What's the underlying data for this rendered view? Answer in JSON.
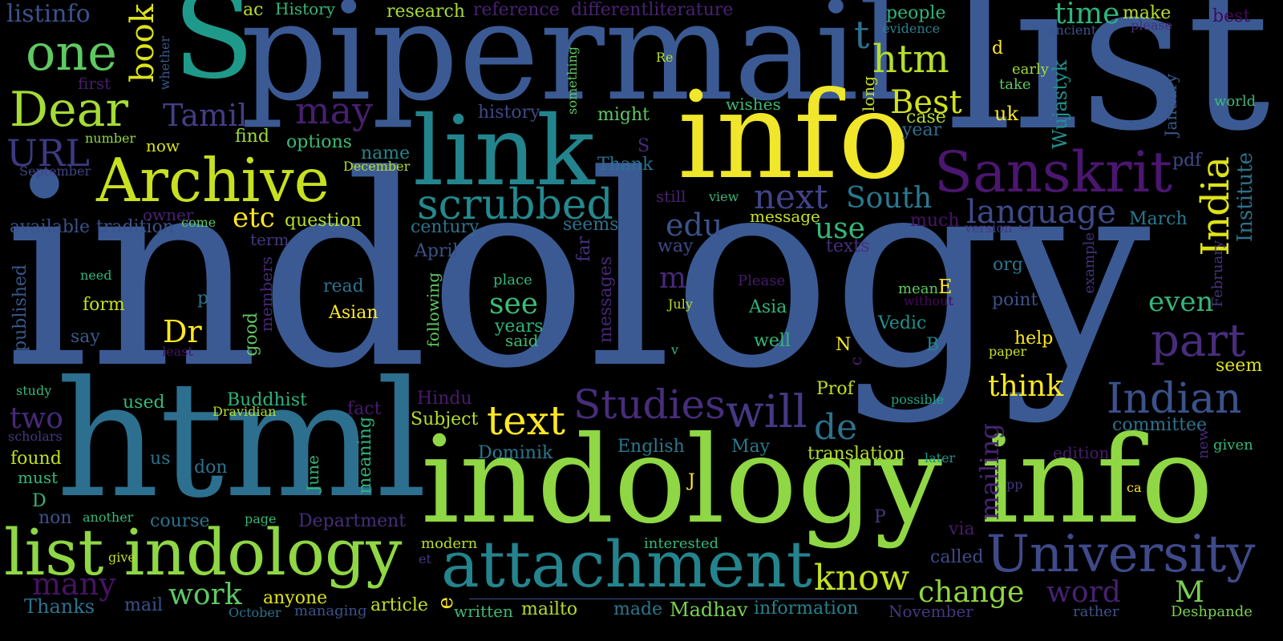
{
  "words": [
    {
      "text": "indology",
      "color": "#3b5a94"
    },
    {
      "text": "list",
      "color": "#3b5a94"
    },
    {
      "text": "pipermail",
      "color": "#3b5a94"
    },
    {
      "text": "info",
      "color": "#f0e62a"
    },
    {
      "text": "indology info",
      "color": "#8fd744"
    },
    {
      "text": "html",
      "color": "#2d6f8e"
    },
    {
      "text": "link",
      "color": "#23848d"
    },
    {
      "text": "S",
      "color": "#1f9a8a"
    },
    {
      "text": "attachment",
      "color": "#23848d"
    },
    {
      "text": "list indology",
      "color": "#8fd744"
    },
    {
      "text": "Archive",
      "color": "#c8e020"
    },
    {
      "text": "Sanskrit",
      "color": "#4b1670"
    },
    {
      "text": "University",
      "color": "#3e4a89"
    },
    {
      "text": "Dear",
      "color": "#a5db36"
    },
    {
      "text": "one",
      "color": "#5ec962"
    },
    {
      "text": "India",
      "color": "#dde318"
    },
    {
      "text": "scrubbed",
      "color": "#23898e"
    },
    {
      "text": "Indian",
      "color": "#3b528b"
    },
    {
      "text": "Studies",
      "color": "#472d7b"
    },
    {
      "text": "text",
      "color": "#fde725"
    },
    {
      "text": "will",
      "color": "#443983"
    },
    {
      "text": "part",
      "color": "#472d7b"
    },
    {
      "text": "htm",
      "color": "#b5de2b"
    },
    {
      "text": "Best",
      "color": "#d2e21b"
    },
    {
      "text": "book",
      "color": "#dde318"
    },
    {
      "text": "may",
      "color": "#481f70"
    },
    {
      "text": "next",
      "color": "#414487"
    },
    {
      "text": "Tamil",
      "color": "#433e85"
    },
    {
      "text": "language",
      "color": "#3e4a89"
    },
    {
      "text": "South",
      "color": "#2a788e"
    },
    {
      "text": "URL",
      "color": "#3b3a81"
    },
    {
      "text": "edu",
      "color": "#3b528b"
    },
    {
      "text": "use",
      "color": "#35b779"
    },
    {
      "text": "time",
      "color": "#2fb47c"
    },
    {
      "text": "listinfo",
      "color": "#3b528b"
    },
    {
      "text": "know",
      "color": "#c5e021"
    },
    {
      "text": "change",
      "color": "#90d743"
    },
    {
      "text": "de",
      "color": "#2c728e"
    },
    {
      "text": "work",
      "color": "#5ec962"
    },
    {
      "text": "two",
      "color": "#472a7a"
    },
    {
      "text": "Dr",
      "color": "#fde725"
    },
    {
      "text": "think",
      "color": "#fde725"
    },
    {
      "text": "see",
      "color": "#3dbc74"
    },
    {
      "text": "many",
      "color": "#471365"
    },
    {
      "text": "word",
      "color": "#482173"
    },
    {
      "text": "mailing",
      "color": "#482475"
    },
    {
      "text": "etc",
      "color": "#fde725"
    },
    {
      "text": "even",
      "color": "#35b779"
    },
    {
      "text": "t",
      "color": "#2c728e"
    },
    {
      "text": "m",
      "color": "#482878"
    },
    {
      "text": "M",
      "color": "#7ad151"
    },
    {
      "text": "Thanks",
      "color": "#2c728e"
    },
    {
      "text": "research",
      "color": "#a5db36"
    },
    {
      "text": "reference",
      "color": "#482173"
    },
    {
      "text": "differentliterature",
      "color": "#482173"
    },
    {
      "text": "History",
      "color": "#35b779"
    },
    {
      "text": "ac",
      "color": "#b8de29"
    },
    {
      "text": "people",
      "color": "#2fb47c"
    },
    {
      "text": "make",
      "color": "#b5de2b"
    },
    {
      "text": "best",
      "color": "#46075a"
    },
    {
      "text": "evidence",
      "color": "#26828e"
    },
    {
      "text": "ancient",
      "color": "#3b528b"
    },
    {
      "text": "please",
      "color": "#472d7b"
    },
    {
      "text": "Re",
      "color": "#b8de29"
    },
    {
      "text": "d",
      "color": "#fde725"
    },
    {
      "text": "early",
      "color": "#a0da39"
    },
    {
      "text": "take",
      "color": "#5ec962"
    },
    {
      "text": "Wujastyk",
      "color": "#21908d"
    },
    {
      "text": "world",
      "color": "#3dbc74"
    },
    {
      "text": "uk",
      "color": "#fde725"
    },
    {
      "text": "long",
      "color": "#c2df23"
    },
    {
      "text": "case",
      "color": "#b5de2b"
    },
    {
      "text": "year",
      "color": "#2e6e8e"
    },
    {
      "text": "January",
      "color": "#38598c"
    },
    {
      "text": "pdf",
      "color": "#3e4a89"
    },
    {
      "text": "Institute",
      "color": "#2c728e"
    },
    {
      "text": "first",
      "color": "#481c6e"
    },
    {
      "text": "whether",
      "color": "#38588c"
    },
    {
      "text": "wishes",
      "color": "#3dbc74"
    },
    {
      "text": "history",
      "color": "#3e4989"
    },
    {
      "text": "something",
      "color": "#5ec962"
    },
    {
      "text": "might",
      "color": "#5ec962"
    },
    {
      "text": "find",
      "color": "#a0da39"
    },
    {
      "text": "options",
      "color": "#3dbc74"
    },
    {
      "text": "number",
      "color": "#8fd744"
    },
    {
      "text": "now",
      "color": "#dde318"
    },
    {
      "text": "September",
      "color": "#414487"
    },
    {
      "text": "name",
      "color": "#25858e"
    },
    {
      "text": "December",
      "color": "#b5de2b"
    },
    {
      "text": "Thank",
      "color": "#2d708e"
    },
    {
      "text": "still",
      "color": "#482071"
    },
    {
      "text": "view",
      "color": "#35b779"
    },
    {
      "text": "message",
      "color": "#c8e020"
    },
    {
      "text": "much",
      "color": "#481467"
    },
    {
      "text": "version",
      "color": "#453781"
    },
    {
      "text": "March",
      "color": "#2a788e"
    },
    {
      "text": "February",
      "color": "#46337f"
    },
    {
      "text": "example",
      "color": "#46327e"
    },
    {
      "text": "org",
      "color": "#2c728e"
    },
    {
      "text": "question",
      "color": "#b5de2b"
    },
    {
      "text": "owner",
      "color": "#482173"
    },
    {
      "text": "come",
      "color": "#5ec962"
    },
    {
      "text": "tradition",
      "color": "#3b528b"
    },
    {
      "text": "available",
      "color": "#3b528b"
    },
    {
      "text": "term",
      "color": "#453781"
    },
    {
      "text": "century",
      "color": "#2c728e"
    },
    {
      "text": "seems",
      "color": "#2c728e"
    },
    {
      "text": "far",
      "color": "#46327e"
    },
    {
      "text": "way",
      "color": "#3e4a89"
    },
    {
      "text": "texts",
      "color": "#472d7b"
    },
    {
      "text": "April",
      "color": "#3b528b"
    },
    {
      "text": "need",
      "color": "#2fb47c"
    },
    {
      "text": "place",
      "color": "#35b779"
    },
    {
      "text": "messages",
      "color": "#482677"
    },
    {
      "text": "Please",
      "color": "#481a6c"
    },
    {
      "text": "mean",
      "color": "#5ec962"
    },
    {
      "text": "E",
      "color": "#fde725"
    },
    {
      "text": "without",
      "color": "#46085c"
    },
    {
      "text": "point",
      "color": "#3b528b"
    },
    {
      "text": "published",
      "color": "#38588c"
    },
    {
      "text": "form",
      "color": "#c2df23"
    },
    {
      "text": "p",
      "color": "#2c728e"
    },
    {
      "text": "read",
      "color": "#2c728e"
    },
    {
      "text": "members",
      "color": "#482878"
    },
    {
      "text": "Asian",
      "color": "#fde725"
    },
    {
      "text": "following",
      "color": "#5ec962"
    },
    {
      "text": "years",
      "color": "#2fb47c"
    },
    {
      "text": "said",
      "color": "#3dbc74"
    },
    {
      "text": "July",
      "color": "#b5de2b"
    },
    {
      "text": "Asia",
      "color": "#2fb47c"
    },
    {
      "text": "Vedic",
      "color": "#21918c"
    },
    {
      "text": "say",
      "color": "#38598c"
    },
    {
      "text": "least",
      "color": "#471365"
    },
    {
      "text": "good",
      "color": "#5ec962"
    },
    {
      "text": "v",
      "color": "#35b779"
    },
    {
      "text": "well",
      "color": "#35b779"
    },
    {
      "text": "N",
      "color": "#fde725"
    },
    {
      "text": "B",
      "color": "#26828e"
    },
    {
      "text": "paper",
      "color": "#c8e020"
    },
    {
      "text": "help",
      "color": "#fde725"
    },
    {
      "text": "seem",
      "color": "#dde318"
    },
    {
      "text": "c",
      "color": "#481c6e"
    },
    {
      "text": "study",
      "color": "#35b779"
    },
    {
      "text": "used",
      "color": "#35b779"
    },
    {
      "text": "Buddhist",
      "color": "#2fb47c"
    },
    {
      "text": "Hindu",
      "color": "#481a6c"
    },
    {
      "text": "Prof",
      "color": "#c2df23"
    },
    {
      "text": "possible",
      "color": "#20a386"
    },
    {
      "text": "Dravidian",
      "color": "#b5de2b"
    },
    {
      "text": "fact",
      "color": "#481a6c"
    },
    {
      "text": "Subject",
      "color": "#b5de2b"
    },
    {
      "text": "committee",
      "color": "#2c728e"
    },
    {
      "text": "scholars",
      "color": "#453781"
    },
    {
      "text": "meaning",
      "color": "#2fb47c"
    },
    {
      "text": "new",
      "color": "#482878"
    },
    {
      "text": "given",
      "color": "#35b779"
    },
    {
      "text": "edition",
      "color": "#481a6c"
    },
    {
      "text": "found",
      "color": "#c2df23"
    },
    {
      "text": "us",
      "color": "#2c728e"
    },
    {
      "text": "don",
      "color": "#2c728e"
    },
    {
      "text": "June",
      "color": "#35b779"
    },
    {
      "text": "Dominik",
      "color": "#2a788e"
    },
    {
      "text": "English",
      "color": "#2a788e"
    },
    {
      "text": "May",
      "color": "#2a788e"
    },
    {
      "text": "translation",
      "color": "#b5de2b"
    },
    {
      "text": "later",
      "color": "#21918c"
    },
    {
      "text": "must",
      "color": "#35b779"
    },
    {
      "text": "J",
      "color": "#fde725"
    },
    {
      "text": "pp",
      "color": "#453781"
    },
    {
      "text": "ca",
      "color": "#fde725"
    },
    {
      "text": "D",
      "color": "#35b779"
    },
    {
      "text": "non",
      "color": "#3b528b"
    },
    {
      "text": "another",
      "color": "#35b779"
    },
    {
      "text": "course",
      "color": "#2c728e"
    },
    {
      "text": "page",
      "color": "#35b779"
    },
    {
      "text": "Department",
      "color": "#472d7b"
    },
    {
      "text": "P",
      "color": "#453781"
    },
    {
      "text": "give",
      "color": "#c2df23"
    },
    {
      "text": "modern",
      "color": "#b5de2b"
    },
    {
      "text": "et",
      "color": "#453781"
    },
    {
      "text": "interested",
      "color": "#35b779"
    },
    {
      "text": "via",
      "color": "#481a6c"
    },
    {
      "text": "called",
      "color": "#3e4a89"
    },
    {
      "text": "mail",
      "color": "#3b528b"
    },
    {
      "text": "anyone",
      "color": "#dde318"
    },
    {
      "text": "article",
      "color": "#c2df23"
    },
    {
      "text": "e",
      "color": "#fde725"
    },
    {
      "text": "written",
      "color": "#3dbc74"
    },
    {
      "text": "mailto",
      "color": "#b5de2b"
    },
    {
      "text": "made",
      "color": "#2a788e"
    },
    {
      "text": "Madhav",
      "color": "#7ad151"
    },
    {
      "text": "information",
      "color": "#26828e"
    },
    {
      "text": "November",
      "color": "#453781"
    },
    {
      "text": "rather",
      "color": "#3b528b"
    },
    {
      "text": "Deshpande",
      "color": "#7ad151"
    },
    {
      "text": "October",
      "color": "#2c728e"
    },
    {
      "text": "managing",
      "color": "#3b528b"
    }
  ]
}
